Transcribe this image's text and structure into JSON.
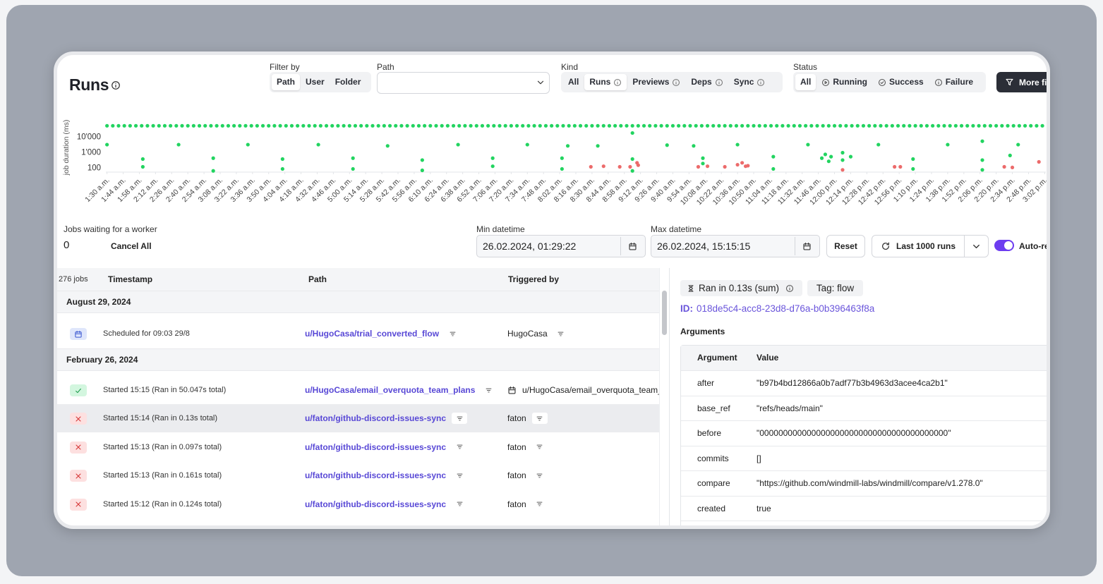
{
  "header": {
    "title": "Runs"
  },
  "filters": {
    "filter_by": {
      "label": "Filter by",
      "options": [
        "Path",
        "User",
        "Folder"
      ],
      "selected": 0
    },
    "path": {
      "label": "Path"
    },
    "kind": {
      "label": "Kind",
      "options": [
        "All",
        "Runs",
        "Previews",
        "Deps",
        "Sync"
      ],
      "selected": 1
    },
    "status": {
      "label": "Status",
      "options": [
        "All",
        "Running",
        "Success",
        "Failure"
      ],
      "selected": 0
    },
    "more": "More filters"
  },
  "chart_data": {
    "type": "scatter",
    "y_label": "job duration (ms)",
    "ylog": true,
    "grid": false,
    "xlim": [
      89,
      903
    ],
    "ylim": [
      50,
      120000
    ],
    "yticks": [
      {
        "value": 100,
        "label": "100"
      },
      {
        "value": 1000,
        "label": "1'000"
      },
      {
        "value": 10000,
        "label": "10'000"
      }
    ],
    "xticks": [
      {
        "value": 90,
        "label": "1:30 a.m."
      },
      {
        "value": 104,
        "label": "1:44 a.m."
      },
      {
        "value": 118,
        "label": "1:58 a.m."
      },
      {
        "value": 132,
        "label": "2:12 a.m."
      },
      {
        "value": 146,
        "label": "2:26 a.m."
      },
      {
        "value": 160,
        "label": "2:40 a.m."
      },
      {
        "value": 174,
        "label": "2:54 a.m."
      },
      {
        "value": 188,
        "label": "3:08 a.m."
      },
      {
        "value": 202,
        "label": "3:22 a.m."
      },
      {
        "value": 216,
        "label": "3:36 a.m."
      },
      {
        "value": 230,
        "label": "3:50 a.m."
      },
      {
        "value": 244,
        "label": "4:04 a.m."
      },
      {
        "value": 258,
        "label": "4:18 a.m."
      },
      {
        "value": 272,
        "label": "4:32 a.m."
      },
      {
        "value": 286,
        "label": "4:46 a.m."
      },
      {
        "value": 300,
        "label": "5:00 a.m."
      },
      {
        "value": 314,
        "label": "5:14 a.m."
      },
      {
        "value": 328,
        "label": "5:28 a.m."
      },
      {
        "value": 342,
        "label": "5:42 a.m."
      },
      {
        "value": 356,
        "label": "5:56 a.m."
      },
      {
        "value": 370,
        "label": "6:10 a.m."
      },
      {
        "value": 384,
        "label": "6:24 a.m."
      },
      {
        "value": 398,
        "label": "6:38 a.m."
      },
      {
        "value": 412,
        "label": "6:52 a.m."
      },
      {
        "value": 426,
        "label": "7:06 a.m."
      },
      {
        "value": 440,
        "label": "7:20 a.m."
      },
      {
        "value": 454,
        "label": "7:34 a.m."
      },
      {
        "value": 468,
        "label": "7:48 a.m."
      },
      {
        "value": 482,
        "label": "8:02 a.m."
      },
      {
        "value": 496,
        "label": "8:16 a.m."
      },
      {
        "value": 510,
        "label": "8:30 a.m."
      },
      {
        "value": 524,
        "label": "8:44 a.m."
      },
      {
        "value": 538,
        "label": "8:58 a.m."
      },
      {
        "value": 552,
        "label": "9:12 a.m."
      },
      {
        "value": 566,
        "label": "9:26 a.m."
      },
      {
        "value": 580,
        "label": "9:40 a.m."
      },
      {
        "value": 594,
        "label": "9:54 a.m."
      },
      {
        "value": 608,
        "label": "10:08 a.m."
      },
      {
        "value": 622,
        "label": "10:22 a.m."
      },
      {
        "value": 636,
        "label": "10:36 a.m."
      },
      {
        "value": 650,
        "label": "10:50 a.m."
      },
      {
        "value": 664,
        "label": "11:04 a.m."
      },
      {
        "value": 678,
        "label": "11:18 a.m."
      },
      {
        "value": 692,
        "label": "11:32 a.m."
      },
      {
        "value": 706,
        "label": "11:46 a.m."
      },
      {
        "value": 720,
        "label": "12:00 p.m."
      },
      {
        "value": 734,
        "label": "12:14 p.m."
      },
      {
        "value": 748,
        "label": "12:28 p.m."
      },
      {
        "value": 762,
        "label": "12:42 p.m."
      },
      {
        "value": 776,
        "label": "12:56 p.m."
      },
      {
        "value": 790,
        "label": "1:10 p.m."
      },
      {
        "value": 804,
        "label": "1:24 p.m."
      },
      {
        "value": 818,
        "label": "1:38 p.m."
      },
      {
        "value": 832,
        "label": "1:52 p.m."
      },
      {
        "value": 846,
        "label": "2:06 p.m."
      },
      {
        "value": 860,
        "label": "2:20 p.m."
      },
      {
        "value": 874,
        "label": "2:34 p.m."
      },
      {
        "value": 888,
        "label": "2:48 p.m."
      },
      {
        "value": 902,
        "label": "3:02 p.m."
      }
    ],
    "series": [
      {
        "color": "#22d460",
        "x": [
          90,
          95,
          100,
          105,
          110,
          115,
          120,
          125,
          130,
          135,
          140,
          145,
          150,
          155,
          160,
          165,
          170,
          175,
          180,
          185,
          190,
          195,
          200,
          205,
          210,
          215,
          220,
          225,
          230,
          235,
          240,
          245,
          250,
          255,
          260,
          265,
          270,
          275,
          280,
          285,
          290,
          295,
          300,
          305,
          310,
          315,
          320,
          325,
          330,
          335,
          340,
          345,
          350,
          355,
          360,
          365,
          370,
          375,
          380,
          385,
          390,
          395,
          400,
          405,
          410,
          415,
          420,
          425,
          430,
          435,
          440,
          445,
          450,
          455,
          460,
          465,
          470,
          475,
          480,
          485,
          490,
          495,
          500,
          505,
          510,
          515,
          520,
          525,
          530,
          535,
          540,
          545,
          550,
          555,
          560,
          565,
          570,
          575,
          580,
          585,
          590,
          595,
          600,
          605,
          610,
          615,
          620,
          625,
          630,
          635,
          640,
          645,
          650,
          655,
          660,
          665,
          670,
          675,
          680,
          685,
          690,
          695,
          700,
          705,
          710,
          715,
          720,
          725,
          730,
          735,
          740,
          745,
          750,
          755,
          760,
          765,
          770,
          775,
          780,
          785,
          790,
          795,
          800,
          805,
          810,
          815,
          820,
          825,
          830,
          835,
          840,
          845,
          850,
          855,
          860,
          865,
          870,
          875,
          880,
          885,
          890,
          895,
          900
        ],
        "values": [
          50000,
          50000,
          50000,
          50000,
          50000,
          50000,
          50000,
          50000,
          50000,
          50000,
          50000,
          50000,
          50000,
          50000,
          50000,
          50000,
          50000,
          50000,
          50000,
          50000,
          50000,
          50000,
          50000,
          50000,
          50000,
          50000,
          50000,
          50000,
          50000,
          50000,
          50000,
          50000,
          50000,
          50000,
          50000,
          50000,
          50000,
          50000,
          50000,
          50000,
          50000,
          50000,
          50000,
          50000,
          50000,
          50000,
          50000,
          50000,
          50000,
          50000,
          50000,
          50000,
          50000,
          50000,
          50000,
          50000,
          50000,
          50000,
          50000,
          50000,
          50000,
          50000,
          50000,
          50000,
          50000,
          50000,
          50000,
          50000,
          50000,
          50000,
          50000,
          50000,
          50000,
          50000,
          50000,
          50000,
          50000,
          50000,
          50000,
          50000,
          50000,
          50000,
          50000,
          50000,
          50000,
          50000,
          50000,
          50000,
          50000,
          50000,
          50000,
          50000,
          50000,
          50000,
          50000,
          50000,
          50000,
          50000,
          50000,
          50000,
          50000,
          50000,
          50000,
          50000,
          50000,
          50000,
          50000,
          50000,
          50000,
          50000,
          50000,
          50000,
          50000,
          50000,
          50000,
          50000,
          50000,
          50000,
          50000,
          50000,
          50000,
          50000,
          50000,
          50000,
          50000,
          50000,
          50000,
          50000,
          50000,
          50000,
          50000,
          50000,
          50000,
          50000,
          50000,
          50000,
          50000,
          50000,
          50000,
          50000,
          50000,
          50000,
          50000,
          50000,
          50000,
          50000,
          50000,
          50000,
          50000,
          50000,
          50000,
          50000,
          50000,
          50000,
          50000,
          50000,
          50000,
          50000,
          50000,
          50000,
          50000,
          50000,
          50000
        ]
      },
      {
        "color": "#22d460",
        "x": [
          90,
          121,
          121,
          152,
          182,
          182,
          212,
          242,
          242,
          273,
          303,
          303,
          333,
          363,
          363,
          394,
          424,
          424,
          454,
          484,
          484,
          489,
          515,
          545,
          545,
          545,
          575,
          598,
          606,
          606,
          636,
          667,
          667,
          697,
          709,
          712,
          715,
          717,
          727,
          727,
          734,
          758,
          788,
          788,
          818,
          848,
          848,
          848,
          872,
          879
        ],
        "values": [
          3000,
          350,
          110,
          3000,
          400,
          60,
          3000,
          350,
          80,
          3000,
          400,
          80,
          2500,
          300,
          65,
          3000,
          400,
          120,
          3000,
          400,
          80,
          2500,
          2500,
          17000,
          350,
          60,
          2800,
          2500,
          400,
          180,
          3000,
          500,
          80,
          3000,
          400,
          700,
          250,
          500,
          900,
          300,
          500,
          3000,
          350,
          80,
          3000,
          5000,
          300,
          70,
          600,
          3000
        ]
      },
      {
        "color": "#ec6b6b",
        "x": [
          509,
          520,
          534,
          543,
          549,
          550,
          602,
          610,
          625,
          636,
          640,
          643,
          645,
          727,
          772,
          777,
          867,
          874,
          897
        ],
        "values": [
          110,
          120,
          110,
          110,
          200,
          140,
          110,
          120,
          110,
          150,
          200,
          120,
          130,
          70,
          110,
          110,
          110,
          100,
          230
        ]
      }
    ]
  },
  "controls": {
    "jobs_waiting_label": "Jobs waiting for a worker",
    "jobs_waiting": 0,
    "cancel_all": "Cancel All",
    "min_label": "Min datetime",
    "min_value": "26.02.2024, 01:29:22",
    "max_label": "Max datetime",
    "max_value": "26.02.2024, 15:15:15",
    "reset": "Reset",
    "last_runs": "Last 1000 runs",
    "auto_refresh": "Auto-refresh"
  },
  "table": {
    "count": "276 jobs",
    "columns": [
      "Timestamp",
      "Path",
      "Triggered by"
    ],
    "groups": [
      {
        "date": "August 29, 2024",
        "rows": [
          {
            "status": "scheduled",
            "timestamp": "Scheduled for 09:03 29/8",
            "path": "u/HugoCasa/trial_converted_flow",
            "triggered_by": "HugoCasa"
          }
        ]
      },
      {
        "date": "February 26, 2024",
        "rows": [
          {
            "status": "success",
            "timestamp": "Started 15:15 (Ran in 50.047s total)",
            "path": "u/HugoCasa/email_overquota_team_plans",
            "triggered_by": "u/HugoCasa/email_overquota_team_plans",
            "trigger_kind": "schedule"
          },
          {
            "status": "failure",
            "timestamp": "Started 15:14 (Ran in 0.13s total)",
            "path": "u/faton/github-discord-issues-sync",
            "triggered_by": "faton",
            "selected": true
          },
          {
            "status": "failure",
            "timestamp": "Started 15:13 (Ran in 0.097s total)",
            "path": "u/faton/github-discord-issues-sync",
            "triggered_by": "faton"
          },
          {
            "status": "failure",
            "timestamp": "Started 15:13 (Ran in 0.161s total)",
            "path": "u/faton/github-discord-issues-sync",
            "triggered_by": "faton"
          },
          {
            "status": "failure",
            "timestamp": "Started 15:12 (Ran in 0.124s total)",
            "path": "u/faton/github-discord-issues-sync",
            "triggered_by": "faton"
          }
        ]
      }
    ]
  },
  "details": {
    "ran_in": "Ran in 0.13s (sum)",
    "tag": "Tag: flow",
    "id_label": "ID:",
    "id": "018de5c4-acc8-23d8-d76a-b0b396463f8a",
    "arguments_title": "Arguments",
    "arguments_columns": [
      "Argument",
      "Value"
    ],
    "arguments": [
      [
        "after",
        "\"b97b4bd12866a0b7adf77b3b4963d3acee4ca2b1\""
      ],
      [
        "base_ref",
        "\"refs/heads/main\""
      ],
      [
        "before",
        "\"0000000000000000000000000000000000000000\""
      ],
      [
        "commits",
        "[]"
      ],
      [
        "compare",
        "\"https://github.com/windmill-labs/windmill/compare/v1.278.0\""
      ],
      [
        "created",
        "true"
      ]
    ]
  }
}
